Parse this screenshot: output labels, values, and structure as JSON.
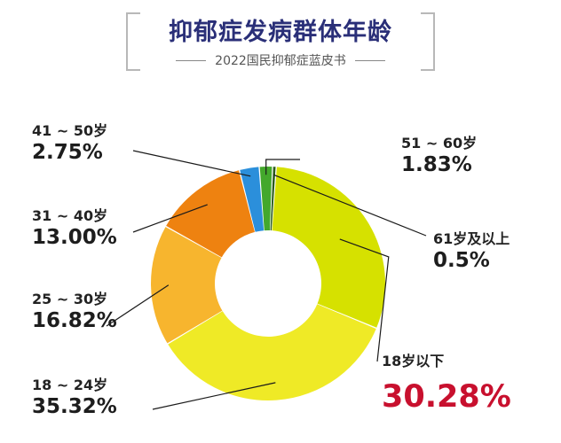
{
  "header": {
    "title": "抑郁症发病群体年龄",
    "subtitle": "2022国民抑郁症蓝皮书"
  },
  "chart_data": {
    "type": "pie",
    "donut": true,
    "unit": "%",
    "slices": [
      {
        "label": "18岁以下",
        "value_text": "30.28%",
        "value": 30.28,
        "color": "#d6e100"
      },
      {
        "label": "18 ~ 24岁",
        "value_text": "35.32%",
        "value": 35.32,
        "color": "#efea26"
      },
      {
        "label": "25 ~ 30岁",
        "value_text": "16.82%",
        "value": 16.82,
        "color": "#f7b52e"
      },
      {
        "label": "31 ~ 40岁",
        "value_text": "13.00%",
        "value": 13.0,
        "color": "#ee8210"
      },
      {
        "label": "41 ~ 50岁",
        "value_text": "2.75%",
        "value": 2.75,
        "color": "#2b8fdb"
      },
      {
        "label": "51 ~ 60岁",
        "value_text": "1.83%",
        "value": 1.83,
        "color": "#43a82c"
      },
      {
        "label": "61岁及以上",
        "value_text": "0.5%",
        "value": 0.5,
        "color": "#2a5a1e"
      }
    ],
    "highlight_color": "#c8102e"
  }
}
